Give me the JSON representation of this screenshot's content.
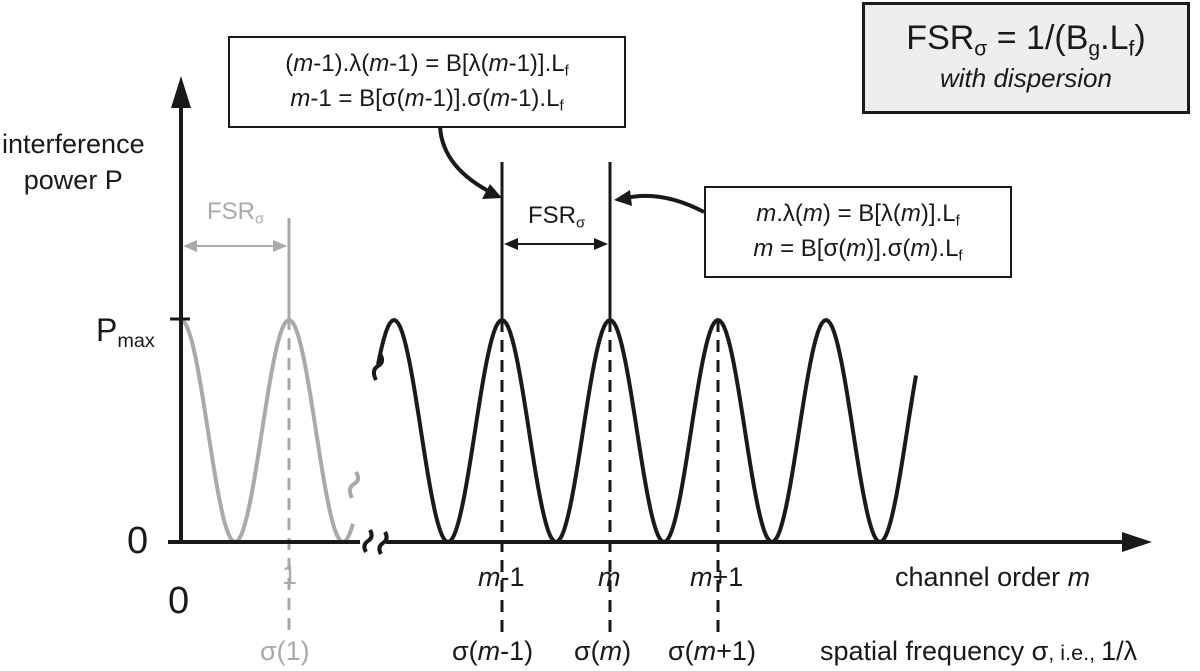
{
  "formula_box": {
    "line1_prefix": "FSR",
    "line1_sub": "σ",
    "line1_mid": " = 1/(B",
    "line1_sub2": "g",
    "line1_mid2": ".L",
    "line1_sub3": "f",
    "line1_end": ")",
    "line2": "with dispersion"
  },
  "upper_box": {
    "line1": [
      "(",
      "m",
      "-1).λ(",
      "m",
      "-1) = B[λ(",
      "m",
      "-1)].L",
      "f"
    ],
    "line2": [
      "m",
      "-1 = B[σ(",
      "m",
      "-1)].σ(",
      "m",
      "-1).L",
      "f"
    ]
  },
  "right_box": {
    "line1": [
      "m",
      ".λ(",
      "m",
      ") = B[λ(",
      "m",
      ")].L",
      "f"
    ],
    "line2": [
      "m",
      " = B[σ(",
      "m",
      ")].σ(",
      "m",
      ").L",
      "f"
    ]
  },
  "axis": {
    "y_title_line1": "interference",
    "y_title_line2": "power P",
    "pmax_main": "P",
    "pmax_sub": "max",
    "zero_y": "0",
    "zero_x": "0",
    "x_title_channel": [
      "channel order ",
      "m"
    ],
    "x_title_spatial": [
      "spatial frequency σ",
      ", i.e., ",
      "1/λ"
    ]
  },
  "fsr_gray": {
    "main": "FSR",
    "sub": "σ"
  },
  "fsr_black": {
    "main": "FSR",
    "sub": "σ"
  },
  "ticks": {
    "one": "1",
    "sigma_one": "σ(1)",
    "m_minus_1": [
      "m",
      "-1"
    ],
    "m": [
      "m"
    ],
    "m_plus_1": [
      "m",
      "+1"
    ],
    "sigma_m_minus_1": [
      "σ(",
      "m",
      "-1)"
    ],
    "sigma_m": [
      "σ(",
      "m",
      ")"
    ],
    "sigma_m_plus_1": [
      "σ(",
      "m",
      "+1)"
    ]
  },
  "colors": {
    "ink": "#1a1a1a",
    "gray": "#aaaaaa",
    "box_fill": "#eeeeee"
  }
}
